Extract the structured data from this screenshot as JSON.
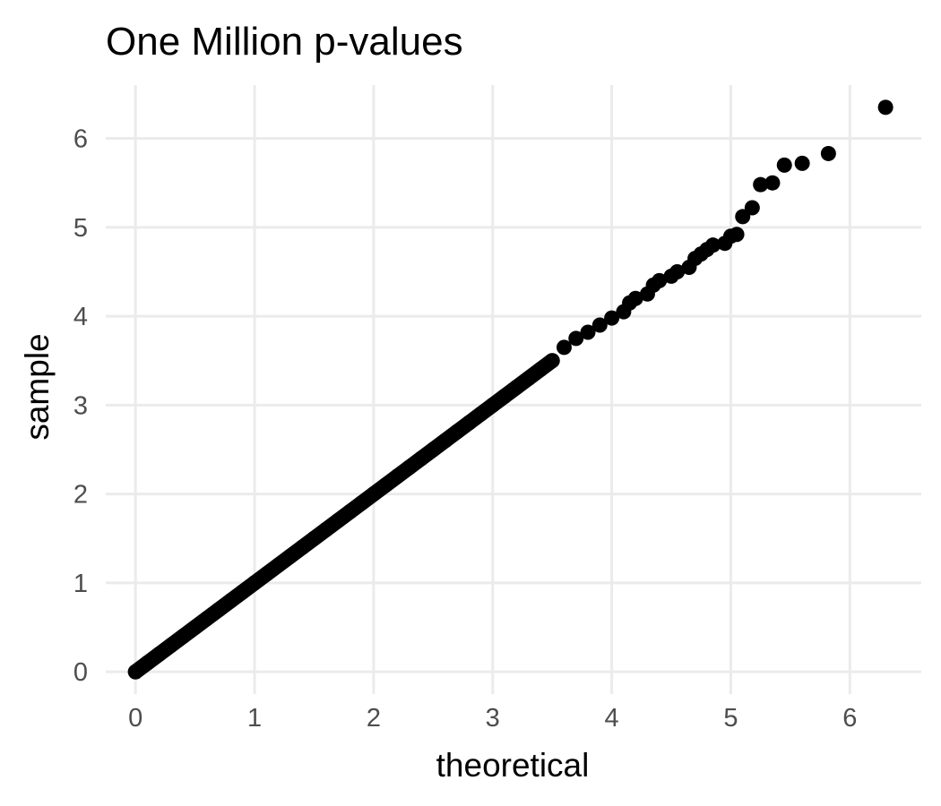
{
  "chart_data": {
    "type": "scatter",
    "title": "One Million p-values",
    "xlabel": "theoretical",
    "ylabel": "sample",
    "xlim": [
      -0.25,
      6.6
    ],
    "ylim": [
      -0.25,
      6.6
    ],
    "x_ticks": [
      0,
      1,
      2,
      3,
      4,
      5,
      6
    ],
    "y_ticks": [
      0,
      1,
      2,
      3,
      4,
      5,
      6
    ],
    "x_tick_labels": [
      "0",
      "1",
      "2",
      "3",
      "4",
      "5",
      "6"
    ],
    "y_tick_labels": [
      "0",
      "1",
      "2",
      "3",
      "4",
      "5",
      "6"
    ],
    "grid": true,
    "legend": "none",
    "point_color": "#000000",
    "series": [
      {
        "points": [
          [
            0.0,
            0.0
          ],
          [
            0.1,
            0.1
          ],
          [
            0.2,
            0.2
          ],
          [
            0.3,
            0.3
          ],
          [
            0.4,
            0.4
          ],
          [
            0.5,
            0.5
          ],
          [
            0.6,
            0.6
          ],
          [
            0.7,
            0.7
          ],
          [
            0.8,
            0.8
          ],
          [
            0.9,
            0.9
          ],
          [
            1.0,
            1.0
          ],
          [
            1.1,
            1.1
          ],
          [
            1.2,
            1.2
          ],
          [
            1.3,
            1.3
          ],
          [
            1.4,
            1.4
          ],
          [
            1.5,
            1.5
          ],
          [
            1.6,
            1.6
          ],
          [
            1.7,
            1.7
          ],
          [
            1.8,
            1.8
          ],
          [
            1.9,
            1.9
          ],
          [
            2.0,
            2.0
          ],
          [
            2.1,
            2.1
          ],
          [
            2.2,
            2.2
          ],
          [
            2.3,
            2.3
          ],
          [
            2.4,
            2.4
          ],
          [
            2.5,
            2.5
          ],
          [
            2.6,
            2.6
          ],
          [
            2.7,
            2.7
          ],
          [
            2.8,
            2.8
          ],
          [
            2.9,
            2.9
          ],
          [
            3.0,
            3.0
          ],
          [
            3.1,
            3.1
          ],
          [
            3.2,
            3.2
          ],
          [
            3.3,
            3.3
          ],
          [
            3.4,
            3.4
          ],
          [
            3.5,
            3.5
          ],
          [
            3.6,
            3.65
          ],
          [
            3.7,
            3.75
          ],
          [
            3.8,
            3.82
          ],
          [
            3.9,
            3.9
          ],
          [
            4.0,
            3.98
          ],
          [
            4.1,
            4.05
          ],
          [
            4.15,
            4.15
          ],
          [
            4.2,
            4.2
          ],
          [
            4.3,
            4.25
          ],
          [
            4.35,
            4.35
          ],
          [
            4.4,
            4.4
          ],
          [
            4.5,
            4.45
          ],
          [
            4.55,
            4.5
          ],
          [
            4.65,
            4.55
          ],
          [
            4.7,
            4.65
          ],
          [
            4.75,
            4.7
          ],
          [
            4.8,
            4.75
          ],
          [
            4.85,
            4.8
          ],
          [
            4.95,
            4.82
          ],
          [
            5.0,
            4.9
          ],
          [
            5.05,
            4.92
          ],
          [
            5.1,
            5.12
          ],
          [
            5.18,
            5.22
          ],
          [
            5.25,
            5.48
          ],
          [
            5.35,
            5.5
          ],
          [
            5.45,
            5.7
          ],
          [
            5.6,
            5.72
          ],
          [
            5.82,
            5.83
          ],
          [
            6.3,
            6.35
          ]
        ]
      }
    ]
  }
}
